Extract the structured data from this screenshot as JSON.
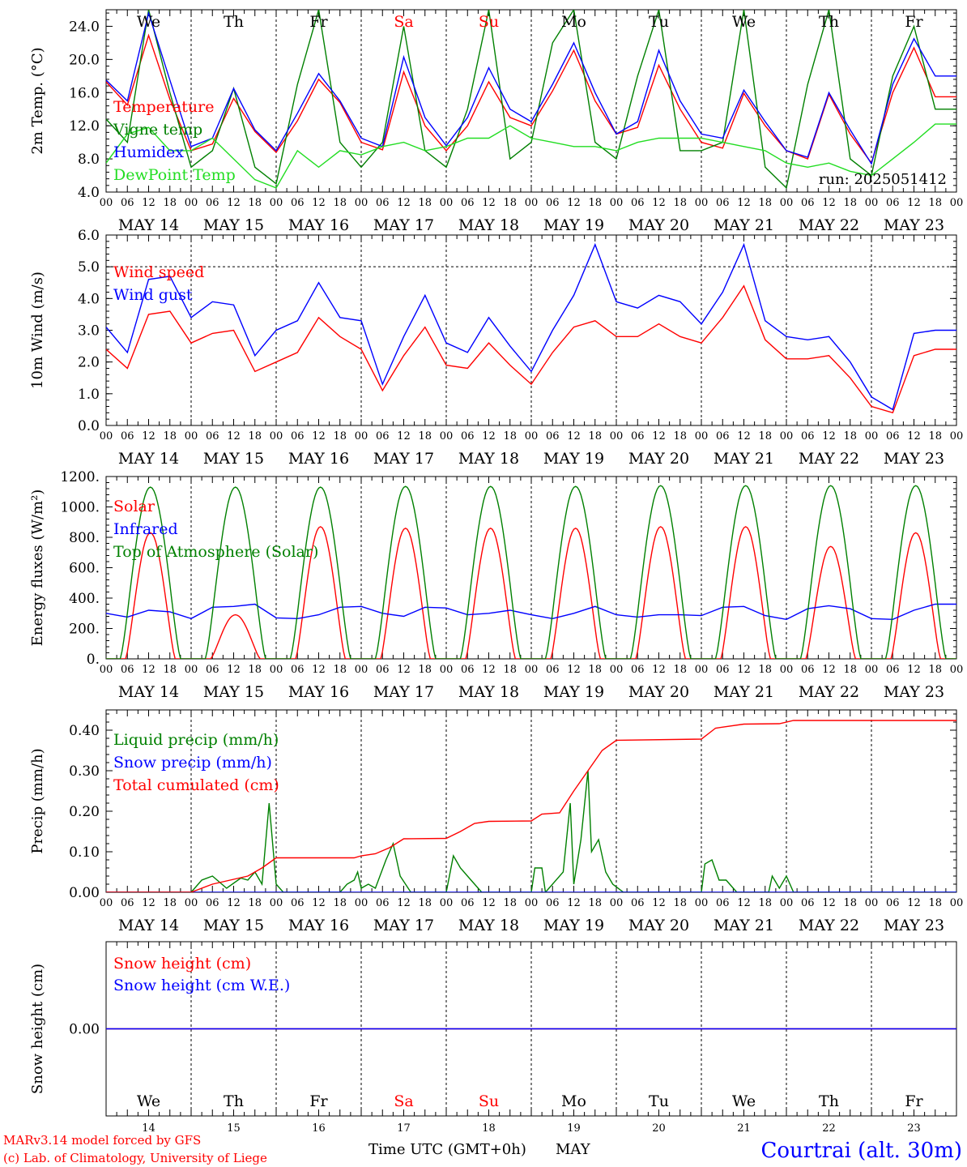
{
  "time_axis": {
    "hour_ticks": [
      "00",
      "06",
      "12",
      "18"
    ],
    "dates": [
      "MAY 14",
      "MAY 15",
      "MAY 16",
      "MAY 17",
      "MAY 18",
      "MAY 19",
      "MAY 20",
      "MAY 21",
      "MAY 22",
      "MAY 23"
    ],
    "weekdays": [
      "We",
      "Th",
      "Fr",
      "Sa",
      "Su",
      "Mo",
      "Tu",
      "We",
      "Th",
      "Fr"
    ],
    "day_numbers": [
      "14",
      "15",
      "16",
      "17",
      "18",
      "19",
      "20",
      "21",
      "22",
      "23"
    ],
    "month": "MAY",
    "xlabel": "Time UTC (GMT+0h)"
  },
  "colors": {
    "weekday": "#000000",
    "weekend": "#ff0000",
    "red": "#ff0000",
    "green": "#008000",
    "blue": "#0000ff",
    "lightgreen": "#22dd22"
  },
  "footer": {
    "model": "MARv3.14 model forced by GFS",
    "credit": "(c) Lab. of Climatology, University of Liege",
    "station": "Courtrai (alt. 30m)"
  },
  "chart_data": [
    {
      "id": "temperature",
      "type": "line",
      "ylabel": "2m Temp. (°C)",
      "ylim": [
        4,
        26
      ],
      "yticks": [
        4,
        8,
        12,
        16,
        20,
        24
      ],
      "tick_labels": [
        "4.0",
        "8.0",
        "12.0",
        "16.0",
        "20.0",
        "24.0"
      ],
      "annotation": "run: 2025051412",
      "x": "hours since May 14 00 UTC, 6-hourly",
      "series": [
        {
          "name": "Temperature",
          "color": "#ff0000",
          "values": [
            17.3,
            14.5,
            22.9,
            15.2,
            9.0,
            9.8,
            15.3,
            11.3,
            8.8,
            12.6,
            17.6,
            14.8,
            10.0,
            9.1,
            18.5,
            12.0,
            9.0,
            12.0,
            17.3,
            13.0,
            12.0,
            16.2,
            21.1,
            15.0,
            11.0,
            11.8,
            19.3,
            14.0,
            10.0,
            9.3,
            15.9,
            12.0,
            9.0,
            8.0,
            15.8,
            11.0,
            7.5,
            16.0,
            21.4,
            15.5
          ]
        },
        {
          "name": "Vigne temp",
          "color": "#008000",
          "values": [
            12.8,
            10.0,
            26.0,
            16.0,
            7.0,
            9.0,
            16.5,
            7.0,
            5.0,
            17.0,
            26.0,
            10.0,
            7.0,
            10.0,
            24.0,
            9.0,
            7.0,
            14.0,
            26.0,
            8.0,
            10.0,
            22.0,
            26.0,
            10.0,
            8.0,
            18.0,
            26.0,
            9.0,
            9.0,
            10.0,
            26.0,
            7.0,
            4.5,
            17.0,
            26.0,
            8.0,
            6.0,
            18.0,
            24.0,
            14.0
          ]
        },
        {
          "name": "Humidex",
          "color": "#0000ff",
          "values": [
            17.5,
            15.0,
            25.6,
            17.5,
            9.5,
            10.5,
            16.5,
            11.5,
            9.0,
            13.5,
            18.3,
            15.0,
            10.5,
            9.5,
            20.3,
            13.0,
            9.6,
            13.0,
            19.0,
            14.0,
            12.5,
            17.0,
            22.0,
            16.0,
            11.0,
            12.5,
            21.1,
            15.0,
            11.0,
            10.5,
            16.3,
            12.5,
            9.0,
            8.2,
            16.0,
            11.5,
            7.4,
            17.0,
            22.5,
            18.0
          ]
        },
        {
          "name": "DewPoint Temp",
          "color": "#22dd22",
          "values": [
            7.5,
            11.0,
            11.8,
            9.0,
            9.0,
            10.5,
            8.0,
            5.5,
            4.5,
            9.0,
            7.0,
            9.0,
            8.5,
            9.5,
            10.0,
            9.0,
            9.5,
            10.5,
            10.5,
            12.0,
            10.5,
            10.0,
            9.5,
            9.5,
            9.0,
            10.0,
            10.5,
            10.5,
            10.5,
            10.0,
            9.5,
            9.0,
            7.5,
            7.0,
            7.5,
            6.5,
            6.0,
            8.0,
            10.0,
            12.2
          ]
        }
      ]
    },
    {
      "id": "wind",
      "type": "line",
      "ylabel": "10m Wind (m/s)",
      "ylim": [
        0,
        6
      ],
      "yticks": [
        0,
        1,
        2,
        3,
        4,
        5,
        6
      ],
      "tick_labels": [
        "0.0",
        "1.0",
        "2.0",
        "3.0",
        "4.0",
        "5.0",
        "6.0"
      ],
      "ref_line": 5,
      "x": "hours since May 14 00 UTC, 6-hourly",
      "series": [
        {
          "name": "Wind speed",
          "color": "#ff0000",
          "values": [
            2.4,
            1.8,
            3.5,
            3.6,
            2.6,
            2.9,
            3.0,
            1.7,
            2.0,
            2.3,
            3.4,
            2.8,
            2.4,
            1.1,
            2.2,
            3.1,
            1.9,
            1.8,
            2.6,
            1.9,
            1.3,
            2.3,
            3.1,
            3.3,
            2.8,
            2.8,
            3.2,
            2.8,
            2.6,
            3.4,
            4.4,
            2.7,
            2.1,
            2.1,
            2.2,
            1.5,
            0.6,
            0.4,
            2.2,
            2.4
          ]
        },
        {
          "name": "Wind gust",
          "color": "#0000ff",
          "values": [
            3.1,
            2.3,
            4.6,
            4.7,
            3.4,
            3.9,
            3.8,
            2.2,
            3.0,
            3.3,
            4.5,
            3.4,
            3.3,
            1.3,
            2.8,
            4.1,
            2.6,
            2.3,
            3.4,
            2.5,
            1.7,
            3.0,
            4.1,
            5.7,
            3.9,
            3.7,
            4.1,
            3.9,
            3.2,
            4.2,
            5.7,
            3.3,
            2.8,
            2.7,
            2.8,
            2.0,
            0.9,
            0.5,
            2.9,
            3.0
          ]
        }
      ]
    },
    {
      "id": "energy",
      "type": "line",
      "ylabel": "Energy fluxes (W/m²)",
      "ylim": [
        0,
        1200
      ],
      "yticks": [
        0,
        200,
        400,
        600,
        800,
        1000,
        1200
      ],
      "tick_labels": [
        "0.",
        "200.",
        "400.",
        "600.",
        "800.",
        "1000.",
        "1200."
      ],
      "x": "hours since May 14 00 UTC; each day: 04, 12 (peak), 20 UTC",
      "series": [
        {
          "name": "Solar",
          "color": "#ff0000",
          "peaks": [
            830,
            290,
            870,
            860,
            860,
            860,
            870,
            870,
            740,
            830
          ]
        },
        {
          "name": "Infrared",
          "color": "#0000ff",
          "values": [
            300,
            275,
            320,
            310,
            265,
            340,
            345,
            360,
            270,
            265,
            290,
            340,
            345,
            300,
            280,
            340,
            335,
            290,
            300,
            320,
            290,
            265,
            300,
            345,
            290,
            275,
            290,
            290,
            285,
            340,
            345,
            285,
            260,
            330,
            350,
            330,
            265,
            260,
            320,
            360
          ]
        },
        {
          "name": "Top of Atmosphere (Solar)",
          "color": "#008000",
          "peaks": [
            1130,
            1130,
            1130,
            1135,
            1135,
            1135,
            1140,
            1140,
            1140,
            1140
          ]
        }
      ]
    },
    {
      "id": "precip",
      "type": "line",
      "ylabel": "Precip (mm/h)",
      "ylim": [
        0,
        0.45
      ],
      "yticks": [
        0,
        0.1,
        0.2,
        0.3,
        0.4
      ],
      "tick_labels": [
        "0.00",
        "0.10",
        "0.20",
        "0.30",
        "0.40"
      ],
      "x": "hours since May 14 00 UTC",
      "series": [
        {
          "name": "Liquid precip (mm/h)",
          "color": "#008000",
          "points": [
            [
              0,
              0
            ],
            [
              24,
              0
            ],
            [
              27,
              0.03
            ],
            [
              30,
              0.04
            ],
            [
              34,
              0.01
            ],
            [
              38,
              0.035
            ],
            [
              40,
              0.03
            ],
            [
              42,
              0.05
            ],
            [
              44,
              0.02
            ],
            [
              46,
              0.22
            ],
            [
              48,
              0.02
            ],
            [
              50,
              0
            ],
            [
              66,
              0
            ],
            [
              68,
              0.02
            ],
            [
              70,
              0.03
            ],
            [
              71,
              0.05
            ],
            [
              72,
              0.01
            ],
            [
              74,
              0.02
            ],
            [
              76,
              0.01
            ],
            [
              79,
              0.08
            ],
            [
              81,
              0.12
            ],
            [
              83,
              0.04
            ],
            [
              86,
              0
            ],
            [
              96,
              0
            ],
            [
              98,
              0.09
            ],
            [
              100,
              0.06
            ],
            [
              103,
              0.03
            ],
            [
              106,
              0
            ],
            [
              120,
              0
            ],
            [
              121,
              0.06
            ],
            [
              123,
              0.06
            ],
            [
              124,
              0
            ],
            [
              129,
              0.05
            ],
            [
              131,
              0.22
            ],
            [
              132,
              0.02
            ],
            [
              134,
              0.13
            ],
            [
              136,
              0.3
            ],
            [
              137,
              0.1
            ],
            [
              139,
              0.13
            ],
            [
              141,
              0.05
            ],
            [
              143,
              0.02
            ],
            [
              146,
              0
            ],
            [
              168,
              0
            ],
            [
              169,
              0.07
            ],
            [
              171,
              0.08
            ],
            [
              173,
              0.03
            ],
            [
              175,
              0.03
            ],
            [
              178,
              0
            ],
            [
              187,
              0
            ],
            [
              188,
              0.04
            ],
            [
              190,
              0.01
            ],
            [
              192,
              0.04
            ],
            [
              194,
              0
            ],
            [
              240,
              0
            ]
          ]
        },
        {
          "name": "Snow precip (mm/h)",
          "color": "#0000ff",
          "points": [
            [
              0,
              0
            ],
            [
              240,
              0
            ]
          ]
        },
        {
          "name": "Total cumulated (cm)",
          "color": "#ff0000",
          "points": [
            [
              0,
              0
            ],
            [
              24,
              0
            ],
            [
              30,
              0.02
            ],
            [
              40,
              0.04
            ],
            [
              44,
              0.06
            ],
            [
              48,
              0.085
            ],
            [
              70,
              0.085
            ],
            [
              72,
              0.09
            ],
            [
              76,
              0.095
            ],
            [
              80,
              0.11
            ],
            [
              84,
              0.132
            ],
            [
              96,
              0.133
            ],
            [
              100,
              0.15
            ],
            [
              104,
              0.17
            ],
            [
              108,
              0.175
            ],
            [
              120,
              0.176
            ],
            [
              123,
              0.193
            ],
            [
              128,
              0.196
            ],
            [
              132,
              0.25
            ],
            [
              136,
              0.3
            ],
            [
              140,
              0.35
            ],
            [
              144,
              0.375
            ],
            [
              168,
              0.378
            ],
            [
              172,
              0.405
            ],
            [
              180,
              0.415
            ],
            [
              190,
              0.416
            ],
            [
              194,
              0.424
            ],
            [
              240,
              0.424
            ]
          ]
        }
      ]
    },
    {
      "id": "snow",
      "type": "line",
      "ylabel": "Snow height (cm)",
      "ylim": [
        -1,
        1
      ],
      "yticks": [
        0
      ],
      "tick_labels": [
        "0.00"
      ],
      "x": "hours since May 14 00 UTC",
      "series": [
        {
          "name": "Snow height (cm)",
          "color": "#ff0000",
          "points": [
            [
              0,
              0
            ],
            [
              240,
              0
            ]
          ]
        },
        {
          "name": "Snow height (cm W.E.)",
          "color": "#0000ff",
          "points": [
            [
              0,
              0
            ],
            [
              240,
              0
            ]
          ]
        }
      ]
    }
  ]
}
